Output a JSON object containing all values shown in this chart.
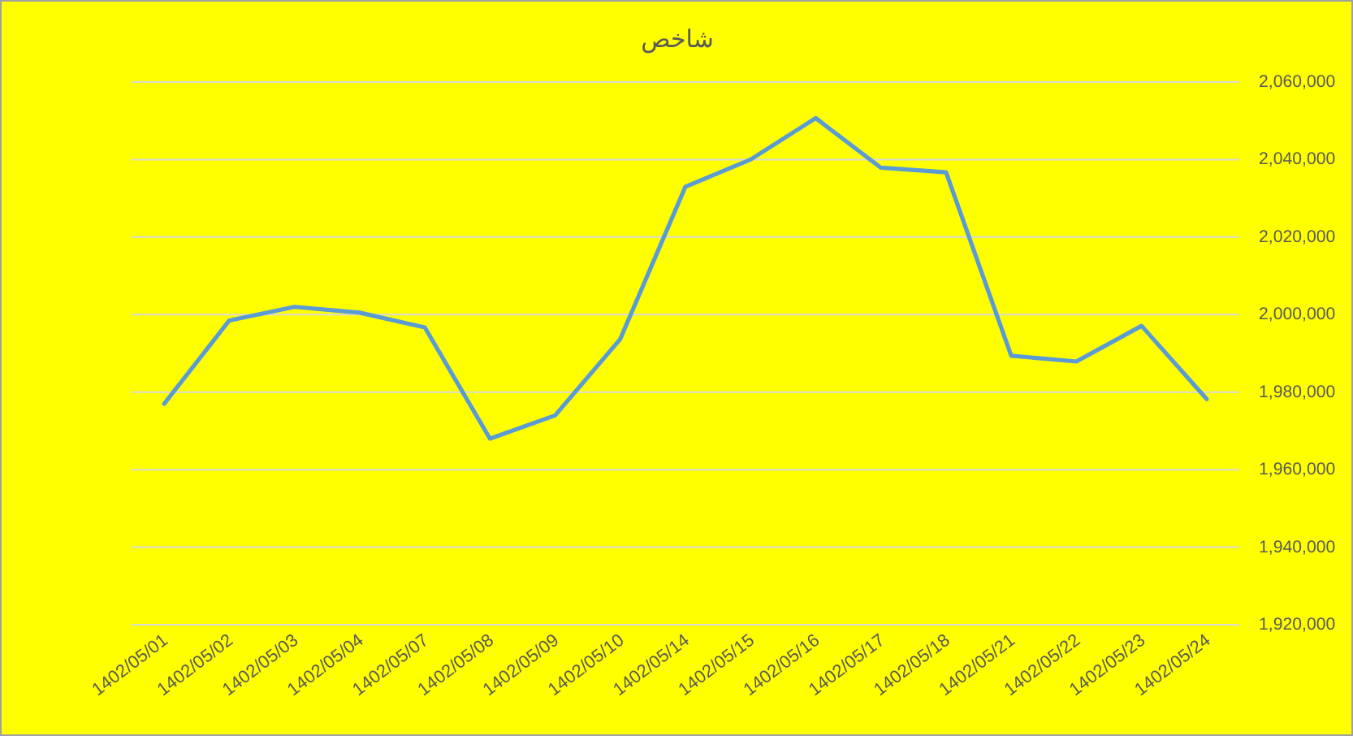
{
  "chart_data": {
    "type": "line",
    "title": "شاخص",
    "categories": [
      "1402/05/01",
      "1402/05/02",
      "1402/05/03",
      "1402/05/04",
      "1402/05/07",
      "1402/05/08",
      "1402/05/09",
      "1402/05/10",
      "1402/05/14",
      "1402/05/15",
      "1402/05/16",
      "1402/05/17",
      "1402/05/18",
      "1402/05/21",
      "1402/05/22",
      "1402/05/23",
      "1402/05/24"
    ],
    "values": [
      1977000,
      1998500,
      2002000,
      2000500,
      1996700,
      1968000,
      1974000,
      1993700,
      2033000,
      2040000,
      2050700,
      2037900,
      2036700,
      1989400,
      1987900,
      1997100,
      1978200
    ],
    "color": "#5b9bd5",
    "ylim": [
      1920000,
      2060000
    ],
    "yticks": [
      {
        "value": 1920000,
        "label": "1,920,000"
      },
      {
        "value": 1940000,
        "label": "1,940,000"
      },
      {
        "value": 1960000,
        "label": "1,960,000"
      },
      {
        "value": 1980000,
        "label": "1,980,000"
      },
      {
        "value": 2000000,
        "label": "2,000,000"
      },
      {
        "value": 2020000,
        "label": "2,020,000"
      },
      {
        "value": 2040000,
        "label": "2,040,000"
      },
      {
        "value": 2060000,
        "label": "2,060,000"
      }
    ],
    "grid": "y"
  }
}
